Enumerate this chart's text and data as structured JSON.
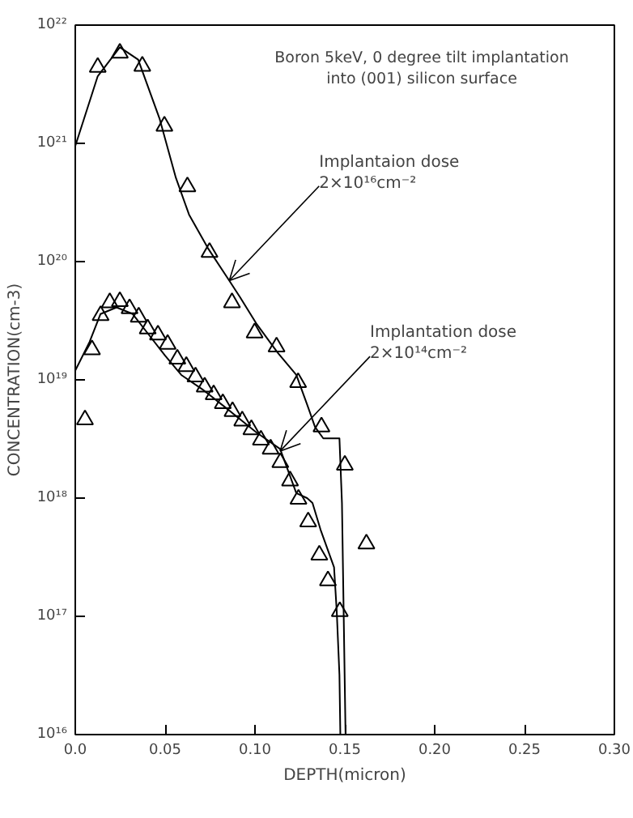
{
  "chart_data": {
    "type": "scatter",
    "title": "Boron 5keV, 0 degree tilt implantation\ninto (001) silicon surface",
    "xlabel": "DEPTH(micron)",
    "ylabel": "CONCENTRATION(cm-3)",
    "log": "y",
    "grid": false,
    "marker": "triangle",
    "xlim": [
      0,
      0.3
    ],
    "ylim": [
      1e+16,
      1e+22
    ],
    "xticks": [
      {
        "value": 0,
        "label": "0.0"
      },
      0.05,
      {
        "value": 0.1,
        "label": "0.10"
      },
      0.15,
      {
        "value": 0.2,
        "label": "0.20"
      },
      0.25,
      {
        "value": 0.3,
        "label": "0.30"
      }
    ],
    "yticks": [
      {
        "value": 1e+16,
        "label": "10¹⁶"
      },
      {
        "value": 1e+17,
        "label": "10¹⁷"
      },
      {
        "value": 1e+18,
        "label": "10¹⁸"
      },
      {
        "value": 1e+19,
        "label": "10¹⁹"
      },
      {
        "value": 1e+20,
        "label": "10²⁰"
      },
      {
        "value": 1e+21,
        "label": "10²¹"
      },
      {
        "value": 1e+22,
        "label": "10²²"
      }
    ],
    "annotations": [
      {
        "text": "Implantaion dose\n2×10¹⁶cm⁻²",
        "x": 0.0857,
        "y": 6.9e+19
      },
      {
        "text": "Implantation dose\n2×10¹⁴cm⁻²",
        "x": 0.114,
        "y": 2.5e+18
      }
    ],
    "series": [
      {
        "type": "line",
        "marker": "none",
        "color": "#000000",
        "x": [
          0,
          0.0125,
          0.0248,
          0.035,
          0.047,
          0.056,
          0.0633,
          0.0738,
          0.0857,
          0.0917,
          0.1007,
          0.1126,
          0.123,
          0.129,
          0.1334,
          0.138,
          0.147,
          0.1484,
          0.1504
        ],
        "values": [
          9.5e+20,
          3.7e+21,
          6.5e+21,
          5.1e+21,
          1.6e+21,
          5.1e+20,
          2.5e+20,
          1.3e+20,
          6.9e+19,
          5e+19,
          3e+19,
          1.7e+19,
          1.1e+19,
          6.2e+18,
          4e+18,
          3.2e+18,
          3.2e+18,
          9.1e+17,
          1e+16
        ]
      },
      {
        "type": "line",
        "marker": "none",
        "color": "#000000",
        "x": [
          0,
          0.008,
          0.014,
          0.023,
          0.032,
          0.041,
          0.05,
          0.059,
          0.0708,
          0.0857,
          0.1007,
          0.114,
          0.123,
          0.129,
          0.132,
          0.1365,
          0.144,
          0.1455,
          0.147,
          0.1475
        ],
        "values": [
          1.2e+19,
          2.1e+19,
          3.6e+19,
          4.1e+19,
          3.6e+19,
          2.4e+19,
          1.6e+19,
          1.1e+19,
          8.3e+18,
          5.5e+18,
          3.6e+18,
          2.6e+18,
          1.1e+18,
          1e+18,
          9.1e+17,
          5.4e+17,
          2.6e+17,
          1.1e+17,
          3.2e+16,
          1e+16
        ]
      },
      {
        "color": "#000000",
        "x": [
          0.0125,
          0.0248,
          0.0373,
          0.0496,
          0.0624,
          0.0747,
          0.0872,
          0.0998,
          0.112,
          0.124,
          0.137,
          0.15,
          0.162
        ],
        "values": [
          4.4e+21,
          5.8e+21,
          4.5e+21,
          1.4e+21,
          4.3e+20,
          1.2e+20,
          4.5e+19,
          2.5e+19,
          1.9e+19,
          9.5e+18,
          4e+18,
          1.9e+18,
          4.1e+17
        ]
      },
      {
        "color": "#000000",
        "x": [
          0.0054,
          0.0093,
          0.0141,
          0.0192,
          0.0248,
          0.0302,
          0.0353,
          0.0403,
          0.046,
          0.0514,
          0.0568,
          0.0618,
          0.0669,
          0.072,
          0.077,
          0.0821,
          0.0875,
          0.0929,
          0.098,
          0.1033,
          0.1087,
          0.1141,
          0.1195,
          0.1242,
          0.1296,
          0.1358,
          0.1406,
          0.1472
        ],
        "values": [
          4.6e+18,
          1.8e+19,
          3.5e+19,
          4.5e+19,
          4.6e+19,
          4e+19,
          3.4e+19,
          2.7e+19,
          2.4e+19,
          2e+19,
          1.5e+19,
          1.3e+19,
          1.06e+19,
          8.7e+18,
          7.5e+18,
          6.3e+18,
          5.4e+18,
          4.5e+18,
          3.8e+18,
          3.1e+18,
          2.6e+18,
          2e+18,
          1.4e+18,
          9.8e+17,
          6.3e+17,
          3.3e+17,
          2e+17,
          1.1e+17
        ]
      }
    ]
  }
}
